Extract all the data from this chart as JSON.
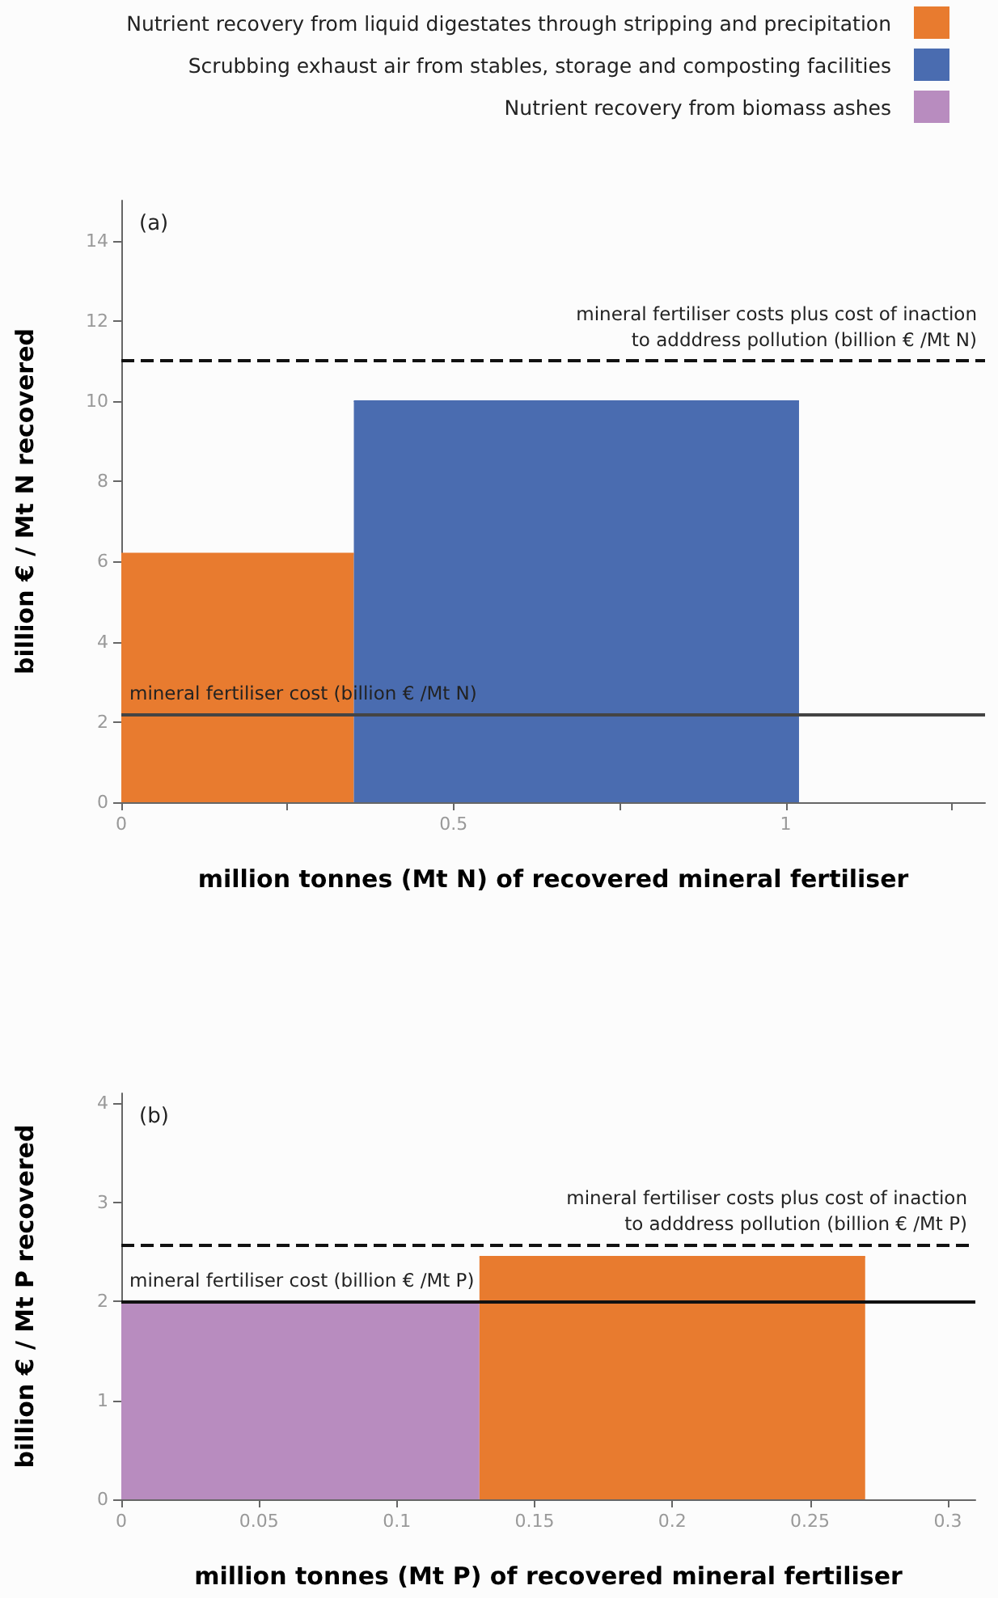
{
  "chart_data": [
    {
      "type": "area",
      "annotations": [
        "(a)"
      ],
      "xlabel": "million tonnes (Mt N) of recovered mineral fertiliser",
      "ylabel": "billion € / Mt N recovered",
      "legend": "top right",
      "marker": "none",
      "xlim": [
        0,
        1.3
      ],
      "xticks": [
        0,
        {
          "value": 0.25,
          "label": null
        },
        0.5,
        {
          "value": 0.75,
          "label": null
        },
        1,
        {
          "value": 1.25,
          "label": null
        }
      ],
      "ylim": [
        0,
        15
      ],
      "yticks": [
        0,
        2,
        4,
        6,
        8,
        10,
        12,
        14
      ],
      "series": [
        {
          "name": "Nutrient recovery from liquid digestates through stripping and precipitation",
          "color": "#e87b2f",
          "x": [
            0,
            0.35
          ],
          "values": [
            6.2,
            6.2
          ]
        },
        {
          "name": "Scrubbing exhaust air from stables, storage and composting facilities",
          "color": "#4a6cb0",
          "x": [
            0.35,
            1.02
          ],
          "values": [
            10,
            10
          ]
        }
      ],
      "ref_lines": [
        {
          "axis": "y",
          "value": 2.2,
          "label": "mineral fertiliser cost (billion € /Mt N)",
          "color": "#444444",
          "line_style": "solid"
        },
        {
          "axis": "y",
          "value": 11,
          "label": "mineral fertiliser costs plus cost of inaction\nto adddress pollution (billion € /Mt N)",
          "color": "#111111",
          "line_style": "dashed"
        }
      ]
    },
    {
      "type": "area",
      "annotations": [
        "(b)"
      ],
      "xlabel": "million tonnes (Mt P) of recovered mineral fertiliser",
      "ylabel": "billion € / Mt P recovered",
      "marker": "none",
      "xlim": [
        0,
        0.31
      ],
      "xticks": [
        0,
        0.05,
        0.1,
        0.15,
        0.2,
        0.25,
        0.3
      ],
      "ylim": [
        0,
        4.1
      ],
      "yticks": [
        0,
        1,
        2,
        3,
        4
      ],
      "series": [
        {
          "name": "Nutrient recovery from biomass ashes",
          "color": "#b88cbf",
          "x": [
            0,
            0.13
          ],
          "values": [
            2,
            2
          ]
        },
        {
          "name": "Nutrient recovery from liquid digestates through stripping and precipitation",
          "color": "#e87b2f",
          "x": [
            0.13,
            0.27
          ],
          "values": [
            2.45,
            2.45
          ]
        }
      ],
      "ref_lines": [
        {
          "axis": "y",
          "value": 2,
          "label": "mineral fertiliser cost (billion € /Mt P)",
          "color": "#111111",
          "line_style": "solid"
        },
        {
          "axis": "y",
          "value": 2.57,
          "label": "mineral fertiliser costs plus cost of inaction\nto adddress pollution (billion € /Mt P)",
          "color": "#111111",
          "line_style": "dashed"
        }
      ]
    }
  ]
}
